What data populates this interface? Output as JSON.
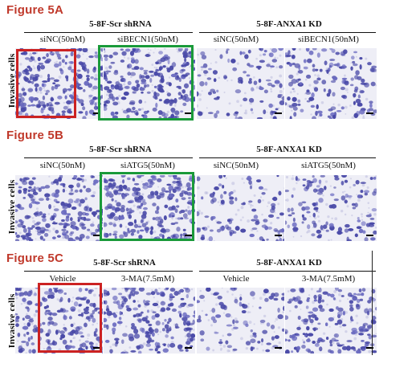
{
  "colors": {
    "figure_label": "#c0392b",
    "highlight_red": "#cc2222",
    "highlight_green": "#1a9a3a",
    "stain": "#4a4aa8",
    "stain_light": "#b8b8dc"
  },
  "fig_a": {
    "label": "Figure 5A",
    "group_left": "5-8F-Scr shRNA",
    "group_right": "5-8F-ANXA1 KD",
    "cols": [
      "siNC(50nM)",
      "siBECN1(50nM)",
      "siNC(50nM)",
      "siBECN1(50nM)"
    ],
    "ylabel": "Invasive cells"
  },
  "fig_b": {
    "label": "Figure 5B",
    "group_left": "5-8F-Scr shRNA",
    "group_right": "5-8F-ANXA1 KD",
    "cols": [
      "siNC(50nM)",
      "siATG5(50nM)",
      "siNC(50nM)",
      "siATG5(50nM)"
    ],
    "ylabel": "Invasive cells"
  },
  "fig_c": {
    "label": "Figure 5C",
    "group_left": "5-8F-Scr shRNA",
    "group_right": "5-8F-ANXA1 KD",
    "cols": [
      "Vehicle",
      "3-MA(7.5mM)",
      "Vehicle",
      "3-MA(7.5mM)"
    ],
    "ylabel": "Invasive cells"
  },
  "panel_density": {
    "a": [
      0.85,
      0.85,
      0.35,
      0.55
    ],
    "b": [
      0.8,
      0.95,
      0.35,
      0.45
    ],
    "c": [
      0.7,
      0.75,
      0.3,
      0.65
    ]
  }
}
